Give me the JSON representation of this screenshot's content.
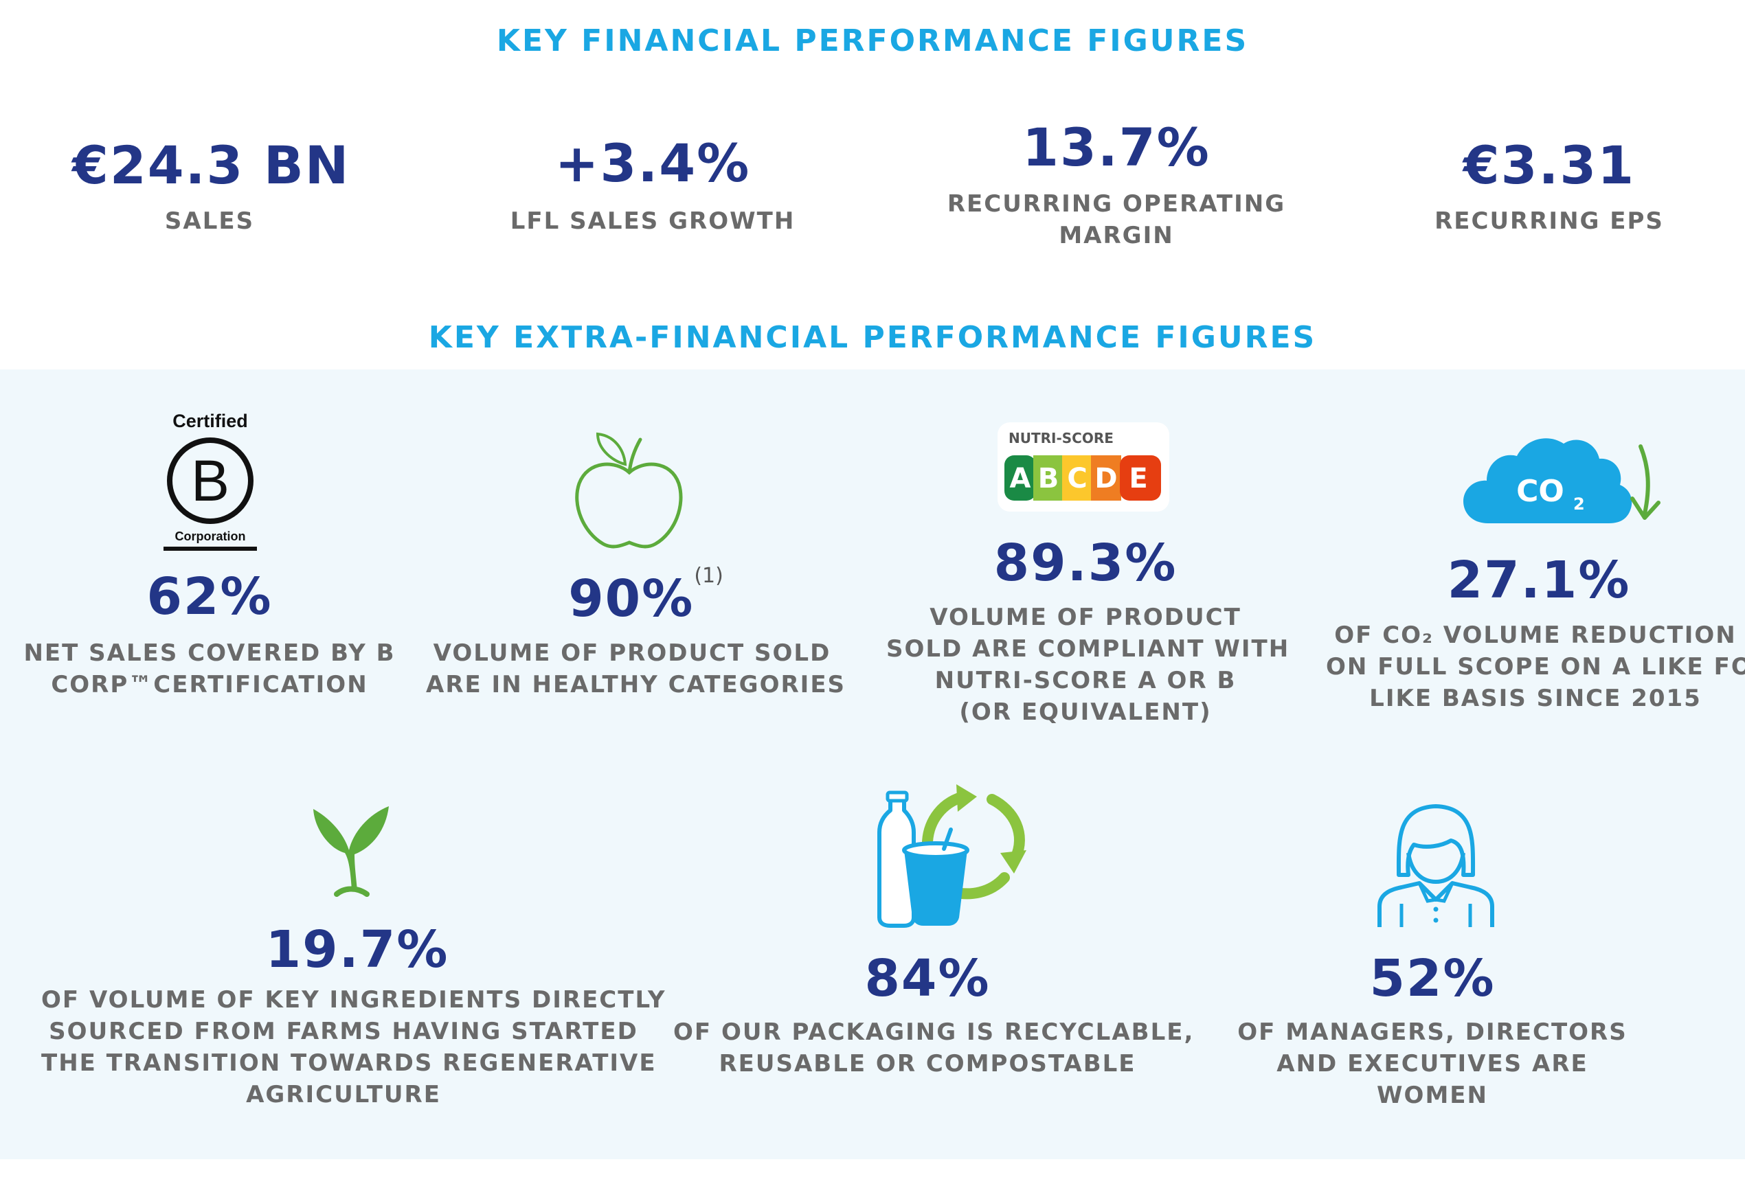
{
  "financial": {
    "heading": "KEY FINANCIAL PERFORMANCE FIGURES",
    "items": [
      {
        "value": "€24.3 BN",
        "label_lines": [
          "SALES"
        ]
      },
      {
        "value": "+3.4%",
        "label_lines": [
          "LFL SALES GROWTH"
        ]
      },
      {
        "value": "13.7%",
        "label_lines": [
          "RECURRING OPERATING",
          "MARGIN"
        ]
      },
      {
        "value": "€3.31",
        "label_lines": [
          "RECURRING EPS"
        ]
      }
    ]
  },
  "extra": {
    "heading": "KEY EXTRA-FINANCIAL PERFORMANCE FIGURES",
    "items": [
      {
        "icon": "b-corp-certified-icon",
        "icon_text": {
          "top": "Certified",
          "letter": "B",
          "bottom": "Corporation"
        },
        "value": "62%",
        "label_lines": [
          "NET SALES COVERED BY B",
          "CORP™CERTIFICATION"
        ]
      },
      {
        "icon": "apple-icon",
        "value": "90%",
        "note": "(1)",
        "label_lines": [
          "VOLUME OF PRODUCT SOLD",
          "ARE IN HEALTHY CATEGORIES"
        ]
      },
      {
        "icon": "nutri-score-icon",
        "icon_text": {
          "title": "NUTRI-SCORE",
          "grades": [
            "A",
            "B",
            "C",
            "D",
            "E"
          ]
        },
        "value": "89.3%",
        "label_lines": [
          "VOLUME OF PRODUCT",
          "SOLD ARE COMPLIANT WITH",
          "NUTRI-SCORE A OR B",
          "(OR EQUIVALENT)"
        ]
      },
      {
        "icon": "co2-cloud-down-arrow-icon",
        "icon_text": {
          "co": "CO",
          "sub": "2"
        },
        "value": "27.1%",
        "label_lines": [
          "OF CO₂ VOLUME REDUCTION",
          "ON FULL SCOPE ON A LIKE FOR",
          "LIKE BASIS SINCE 2015"
        ]
      },
      {
        "icon": "sprout-icon",
        "value": "19.7%",
        "label_lines": [
          "OF VOLUME OF KEY INGREDIENTS DIRECTLY",
          "SOURCED FROM FARMS HAVING STARTED",
          "THE TRANSITION TOWARDS REGENERATIVE",
          "AGRICULTURE"
        ]
      },
      {
        "icon": "recyclable-packaging-icon",
        "value": "84%",
        "label_lines": [
          "OF OUR PACKAGING IS RECYCLABLE,",
          "REUSABLE OR COMPOSTABLE"
        ]
      },
      {
        "icon": "woman-manager-icon",
        "value": "52%",
        "label_lines": [
          "OF MANAGERS, DIRECTORS",
          "AND EXECUTIVES ARE",
          "WOMEN"
        ]
      }
    ]
  },
  "colors": {
    "heading": "#1aa7e3",
    "value": "#233687",
    "caption": "#6a6a6a",
    "band": "#f0f8fc",
    "green": "#5cab3c",
    "nutri": [
      "#1a8a45",
      "#8bc43f",
      "#fcc72c",
      "#ef7d22",
      "#e63e11"
    ]
  }
}
